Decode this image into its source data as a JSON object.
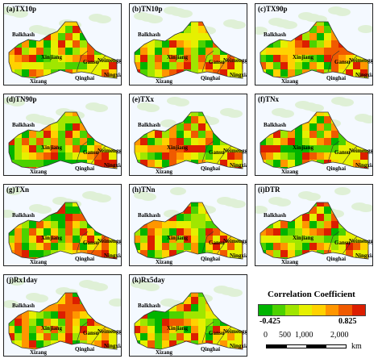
{
  "panels": [
    {
      "title": "(a)TX10p"
    },
    {
      "title": "(b)TN10p"
    },
    {
      "title": "(c)TX90p"
    },
    {
      "title": "(d)TN90p"
    },
    {
      "title": "(e)TXx"
    },
    {
      "title": "(f)TNx"
    },
    {
      "title": "(g)TXn"
    },
    {
      "title": "(h)TNn"
    },
    {
      "title": "(i)DTR"
    },
    {
      "title": "(j)Rx1day"
    },
    {
      "title": "(k)Rx5day"
    }
  ],
  "region_labels": {
    "xinjiang": "Xinjiang",
    "xizang": "Xizang",
    "qinghai": "Qinghai",
    "gansu": "Gansu",
    "neimenggu": "Neimenggu",
    "ningxia": "Ningxia",
    "balkhash": "Balkhash"
  },
  "legend": {
    "title": "Correlation Coefficient",
    "min_label": "-0.425",
    "max_label": "0.825",
    "min": -0.425,
    "max": 0.825,
    "colors": [
      "#00b400",
      "#4cd200",
      "#a0e600",
      "#e6f000",
      "#ffd200",
      "#ff9600",
      "#f05a00",
      "#dc1e00"
    ]
  },
  "scale_bar": {
    "labels": [
      "0",
      "500",
      "1,000",
      "2,000"
    ],
    "unit": "km"
  }
}
